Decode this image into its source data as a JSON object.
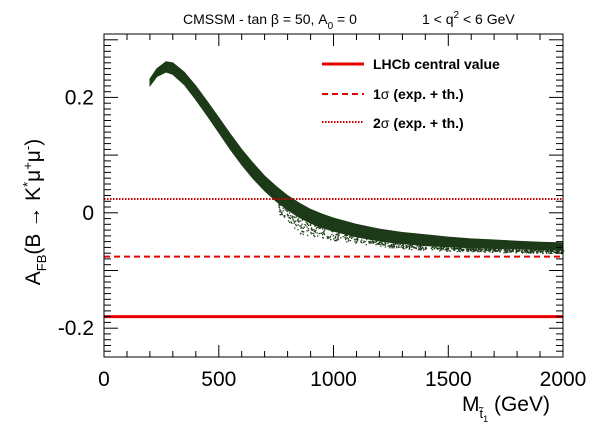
{
  "chart_data": {
    "type": "scatter",
    "title": {
      "left": "CMSSM - tan β = 50, A",
      "left_sub": "0",
      "left_end": " = 0",
      "right": "1 < q",
      "right_sup": "2",
      "right_end": " < 6 GeV"
    },
    "xlabel": {
      "main": "M",
      "sub": "t̃",
      "subsub": "1",
      "unit": " (GeV)"
    },
    "ylabel": {
      "main": "A",
      "sub": "FB",
      "rest": "(B → K",
      "star": "*",
      "mu1": "μ",
      "plus": "+",
      "mu2": "μ",
      "minus": "-",
      "close": ")"
    },
    "xlim": [
      0,
      2000
    ],
    "ylim": [
      -0.25,
      0.31
    ],
    "x_ticks": [
      0,
      500,
      1000,
      1500,
      2000
    ],
    "x_tick_labels": [
      "0",
      "500",
      "1000",
      "1500",
      "2000"
    ],
    "y_ticks": [
      -0.2,
      0,
      0.2
    ],
    "y_tick_labels": [
      "-0.2",
      "0",
      "0.2"
    ],
    "band": {
      "color": "#1c3a17",
      "upper": [
        [
          200,
          0.232
        ],
        [
          230,
          0.25
        ],
        [
          270,
          0.262
        ],
        [
          300,
          0.26
        ],
        [
          350,
          0.244
        ],
        [
          400,
          0.22
        ],
        [
          450,
          0.193
        ],
        [
          500,
          0.165
        ],
        [
          550,
          0.137
        ],
        [
          600,
          0.11
        ],
        [
          650,
          0.086
        ],
        [
          700,
          0.064
        ],
        [
          750,
          0.046
        ],
        [
          800,
          0.03
        ],
        [
          850,
          0.017
        ],
        [
          900,
          0.006
        ],
        [
          950,
          -0.002
        ],
        [
          1000,
          -0.009
        ],
        [
          1100,
          -0.02
        ],
        [
          1200,
          -0.028
        ],
        [
          1300,
          -0.034
        ],
        [
          1400,
          -0.038
        ],
        [
          1500,
          -0.042
        ],
        [
          1600,
          -0.045
        ],
        [
          1700,
          -0.047
        ],
        [
          1800,
          -0.049
        ],
        [
          1900,
          -0.051
        ],
        [
          2000,
          -0.052
        ]
      ],
      "lower": [
        [
          200,
          0.22
        ],
        [
          230,
          0.236
        ],
        [
          270,
          0.244
        ],
        [
          300,
          0.24
        ],
        [
          350,
          0.222
        ],
        [
          400,
          0.196
        ],
        [
          450,
          0.168
        ],
        [
          500,
          0.139
        ],
        [
          550,
          0.11
        ],
        [
          600,
          0.083
        ],
        [
          650,
          0.059
        ],
        [
          700,
          0.038
        ],
        [
          750,
          0.02
        ],
        [
          800,
          0.005
        ],
        [
          850,
          -0.008
        ],
        [
          900,
          -0.018
        ],
        [
          950,
          -0.026
        ],
        [
          1000,
          -0.032
        ],
        [
          1100,
          -0.042
        ],
        [
          1200,
          -0.049
        ],
        [
          1300,
          -0.054
        ],
        [
          1400,
          -0.057
        ],
        [
          1500,
          -0.059
        ],
        [
          1600,
          -0.061
        ],
        [
          1700,
          -0.062
        ],
        [
          1800,
          -0.063
        ],
        [
          1900,
          -0.064
        ],
        [
          2000,
          -0.065
        ]
      ],
      "scatter_bottom": [
        [
          760,
          0.0
        ],
        [
          800,
          -0.02
        ],
        [
          850,
          -0.035
        ],
        [
          900,
          -0.042
        ],
        [
          1000,
          -0.048
        ],
        [
          1100,
          -0.053
        ],
        [
          1200,
          -0.058
        ],
        [
          1300,
          -0.062
        ],
        [
          1400,
          -0.064
        ],
        [
          1500,
          -0.066
        ],
        [
          1700,
          -0.068
        ],
        [
          2000,
          -0.07
        ]
      ]
    },
    "reference_lines": [
      {
        "name": "LHCb central value",
        "y": -0.18,
        "style": "solid",
        "color": "#e60000"
      },
      {
        "name": "1σ (exp. + th.)",
        "y": -0.076,
        "style": "dashed",
        "color": "#e60000",
        "legend_main": "1",
        "legend_sym": "σ",
        "legend_rest": " (exp. + th.)"
      },
      {
        "name": "2σ (exp. + th.)",
        "y": 0.024,
        "style": "dotted",
        "color": "#cc0000",
        "legend_main": "2",
        "legend_sym": "σ",
        "legend_rest": " (exp. + th.)"
      }
    ],
    "legend_position": "top-right",
    "grid": false
  }
}
